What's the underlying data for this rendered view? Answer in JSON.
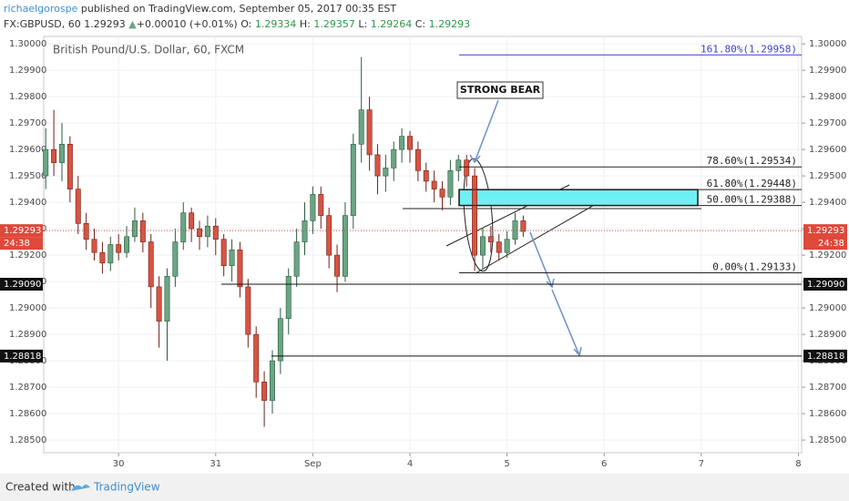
{
  "chart_data": {
    "type": "candlestick",
    "publisher": "richaelgorospe",
    "published_text": "published on TradingView.com, September 05, 2017 00:35 EST",
    "symbol": "FX:GBPUSD, 60",
    "change": "+0.00010 (+0.01%)",
    "ohlc": [
      {
        "label": "O:",
        "value": "1.29334"
      },
      {
        "label": "H:",
        "value": "1.29357"
      },
      {
        "label": "L:",
        "value": "1.29264"
      },
      {
        "label": "C:",
        "value": "1.29293"
      }
    ],
    "title": "British Pound/U.S. Dollar, 60, FXCM",
    "annotation": "STRONG BEAR",
    "footer": "Created with",
    "footer_brand": "TradingView",
    "up_color": "#6ba583",
    "down_color": "#d75442",
    "xlim": [
      -18.5,
      168.8
    ],
    "xticks": [
      {
        "value": 0,
        "label": "30"
      },
      {
        "value": 24,
        "label": "31"
      },
      {
        "value": 48,
        "label": "Sep"
      },
      {
        "value": 72,
        "label": "4"
      },
      {
        "value": 96,
        "label": "5"
      },
      {
        "value": 120,
        "label": "6"
      },
      {
        "value": 144,
        "label": "7"
      },
      {
        "value": 168,
        "label": "8"
      }
    ],
    "ylim": [
      1.28452,
      1.30028
    ],
    "yticks": [
      {
        "value": 1.3,
        "label": "1.30000"
      },
      {
        "value": 1.299,
        "label": "1.29900"
      },
      {
        "value": 1.298,
        "label": "1.29800"
      },
      {
        "value": 1.297,
        "label": "1.29700"
      },
      {
        "value": 1.296,
        "label": "1.29600"
      },
      {
        "value": 1.295,
        "label": "1.29500"
      },
      {
        "value": 1.294,
        "label": "1.29400"
      },
      {
        "value": 1.293,
        "label": "1.29300"
      },
      {
        "value": 1.292,
        "label": "1.29200"
      },
      {
        "value": 1.291,
        "label": "1.29100"
      },
      {
        "value": 1.29,
        "label": "1.29000"
      },
      {
        "value": 1.289,
        "label": "1.28900"
      },
      {
        "value": 1.288,
        "label": "1.28800"
      },
      {
        "value": 1.287,
        "label": "1.28700"
      },
      {
        "value": 1.286,
        "label": "1.28600"
      },
      {
        "value": 1.285,
        "label": "1.28500"
      }
    ],
    "grid": true,
    "x": [
      -18,
      -16,
      -14,
      -12,
      -10,
      -8,
      -6,
      -4,
      -2,
      0,
      2,
      4,
      6,
      8,
      10,
      12,
      14,
      16,
      18,
      20,
      22,
      24,
      26,
      28,
      30,
      32,
      34,
      36,
      38,
      40,
      42,
      44,
      46,
      48,
      50,
      52,
      54,
      56,
      58,
      60,
      62,
      64,
      66,
      68,
      70,
      72,
      74,
      76,
      78,
      80,
      82,
      84,
      86,
      88,
      90,
      92,
      94,
      96,
      98,
      100
    ],
    "open": [
      1.295,
      1.296,
      1.2955,
      1.2962,
      1.2945,
      1.2932,
      1.2926,
      1.2921,
      1.2917,
      1.2924,
      1.2921,
      1.2927,
      1.2933,
      1.2925,
      1.2908,
      1.2895,
      1.2912,
      1.2925,
      1.2936,
      1.293,
      1.2927,
      1.2931,
      1.2926,
      1.2916,
      1.2922,
      1.2908,
      1.289,
      1.2872,
      1.2865,
      1.288,
      1.2896,
      1.2912,
      1.2925,
      1.2933,
      1.2943,
      1.2935,
      1.292,
      1.2912,
      1.2935,
      1.2962,
      1.2975,
      1.2958,
      1.295,
      1.2953,
      1.296,
      1.2965,
      1.296,
      1.2952,
      1.2948,
      1.2945,
      1.2942,
      1.2952,
      1.2956,
      1.295,
      1.292,
      1.2927,
      1.2925,
      1.2921,
      1.2926,
      1.2933
    ],
    "high": [
      1.2968,
      1.2975,
      1.297,
      1.2965,
      1.295,
      1.2936,
      1.293,
      1.2925,
      1.2927,
      1.2928,
      1.2931,
      1.2938,
      1.2936,
      1.2928,
      1.2912,
      1.2915,
      1.293,
      1.294,
      1.2938,
      1.2933,
      1.2935,
      1.2934,
      1.2928,
      1.2926,
      1.2925,
      1.2911,
      1.2893,
      1.2876,
      1.2884,
      1.29,
      1.2915,
      1.293,
      1.294,
      1.2946,
      1.2946,
      1.2938,
      1.2924,
      1.294,
      1.2966,
      1.2995,
      1.298,
      1.2962,
      1.2958,
      1.2963,
      1.2968,
      1.2967,
      1.2963,
      1.2955,
      1.2952,
      1.2948,
      1.2956,
      1.2958,
      1.2958,
      1.2953,
      1.293,
      1.2931,
      1.2928,
      1.2929,
      1.2936,
      1.2935
    ],
    "low": [
      1.2945,
      1.295,
      1.2948,
      1.294,
      1.2928,
      1.2922,
      1.2918,
      1.2913,
      1.2914,
      1.2918,
      1.2919,
      1.2925,
      1.2921,
      1.29,
      1.2885,
      1.288,
      1.2908,
      1.2922,
      1.2925,
      1.2922,
      1.2923,
      1.292,
      1.2912,
      1.291,
      1.2904,
      1.2885,
      1.2866,
      1.2855,
      1.286,
      1.2875,
      1.289,
      1.2908,
      1.292,
      1.2928,
      1.293,
      1.2915,
      1.2906,
      1.291,
      1.293,
      1.2955,
      1.2952,
      1.2943,
      1.2944,
      1.2948,
      1.2955,
      1.2955,
      1.2948,
      1.2944,
      1.294,
      1.2937,
      1.2939,
      1.2948,
      1.2946,
      1.2914,
      1.2915,
      1.2921,
      1.2918,
      1.2919,
      1.2924,
      1.2927
    ],
    "close": [
      1.296,
      1.2955,
      1.2962,
      1.2945,
      1.2932,
      1.2926,
      1.2921,
      1.2917,
      1.2924,
      1.2921,
      1.2927,
      1.2933,
      1.2925,
      1.2908,
      1.2895,
      1.2912,
      1.2925,
      1.2936,
      1.293,
      1.2927,
      1.2931,
      1.2926,
      1.2916,
      1.2922,
      1.2908,
      1.289,
      1.2872,
      1.2865,
      1.288,
      1.2896,
      1.2912,
      1.2925,
      1.2933,
      1.2943,
      1.2935,
      1.292,
      1.2912,
      1.2935,
      1.2962,
      1.2975,
      1.2958,
      1.295,
      1.2953,
      1.296,
      1.2965,
      1.296,
      1.2952,
      1.2948,
      1.2945,
      1.2942,
      1.2952,
      1.2956,
      1.295,
      1.292,
      1.2927,
      1.2925,
      1.2921,
      1.2926,
      1.2933,
      1.2929
    ],
    "last_price": {
      "value": 1.29293,
      "label": "1.29293",
      "countdown": "24:38",
      "color": "#e0483a"
    },
    "levels": [
      {
        "value": 1.2909,
        "label": "1.29090"
      },
      {
        "value": 1.28818,
        "label": "1.28818"
      }
    ],
    "fib_levels": [
      {
        "value": 1.29958,
        "label": "161.80%(1.29958)",
        "color": "#3d3dc8"
      },
      {
        "value": 1.29534,
        "label": "78.60%(1.29534)",
        "color": "#222222"
      },
      {
        "value": 1.29448,
        "label": "61.80%(1.29448)",
        "color": "#222222"
      },
      {
        "value": 1.29388,
        "label": "50.00%(1.29388)",
        "color": "#222222"
      },
      {
        "value": 1.29133,
        "label": "0.00%(1.29133)",
        "color": "#222222"
      }
    ]
  }
}
